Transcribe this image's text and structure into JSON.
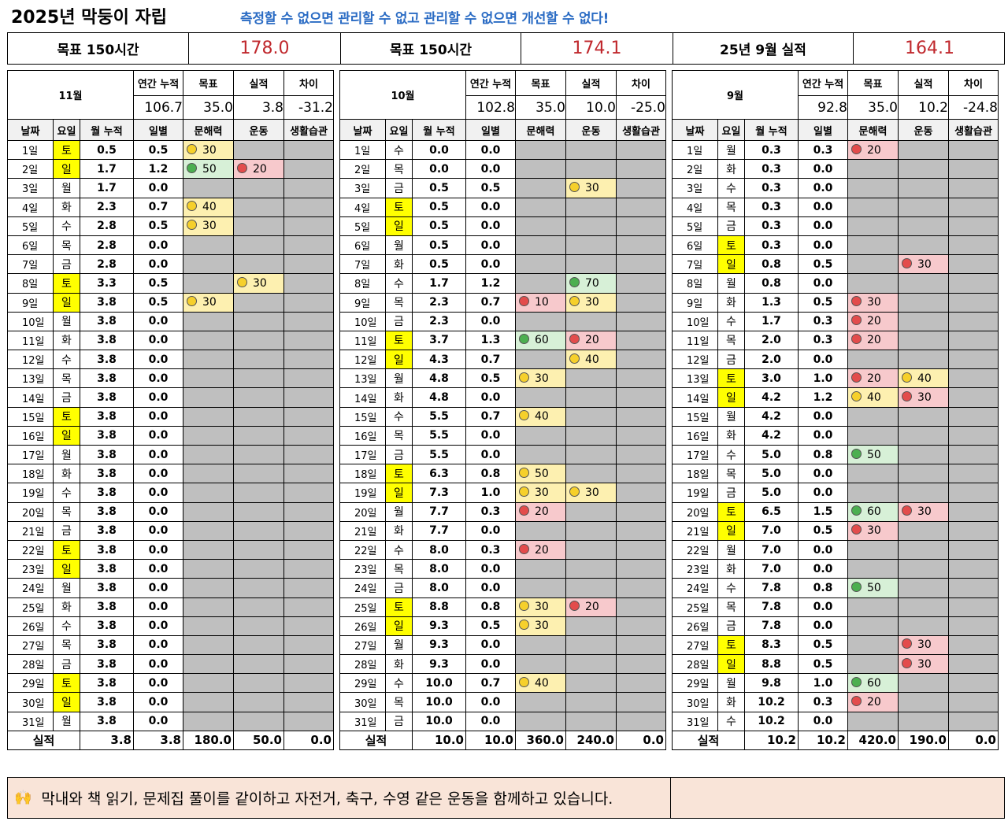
{
  "title": "2025년 막둥이 자립",
  "subtitle": "측정할 수 없으면 관리할 수 없고 관리할 수 없으면 개선할 수 없다!",
  "summary": [
    {
      "label": "목표 150시간",
      "value": "178.0"
    },
    {
      "label": "목표 150시간",
      "value": "174.1"
    },
    {
      "label": "25년 9월 실적",
      "value": "164.1"
    }
  ],
  "headers": {
    "annual": "연간 누적",
    "goal": "목표",
    "actual": "실적",
    "diff": "차이",
    "columns": [
      "날짜",
      "요일",
      "월 누적",
      "일별",
      "문해력",
      "운동",
      "생활습관"
    ],
    "total_label": "실적"
  },
  "months": [
    {
      "name": "11월",
      "annual": "106.7",
      "goal": "35.0",
      "actual": "3.8",
      "diff": "-31.2",
      "days": [
        [
          "1일",
          "토",
          "0.5",
          "0.5",
          "y30",
          ""
        ],
        [
          "2일",
          "일",
          "1.7",
          "1.2",
          "g50",
          "r20"
        ],
        [
          "3일",
          "월",
          "1.7",
          "0.0",
          "",
          ""
        ],
        [
          "4일",
          "화",
          "2.3",
          "0.7",
          "y40",
          ""
        ],
        [
          "5일",
          "수",
          "2.8",
          "0.5",
          "y30",
          ""
        ],
        [
          "6일",
          "목",
          "2.8",
          "0.0",
          "",
          ""
        ],
        [
          "7일",
          "금",
          "2.8",
          "0.0",
          "",
          ""
        ],
        [
          "8일",
          "토",
          "3.3",
          "0.5",
          "",
          "y30"
        ],
        [
          "9일",
          "일",
          "3.8",
          "0.5",
          "y30",
          ""
        ],
        [
          "10일",
          "월",
          "3.8",
          "0.0",
          "",
          ""
        ],
        [
          "11일",
          "화",
          "3.8",
          "0.0",
          "",
          ""
        ],
        [
          "12일",
          "수",
          "3.8",
          "0.0",
          "",
          ""
        ],
        [
          "13일",
          "목",
          "3.8",
          "0.0",
          "",
          ""
        ],
        [
          "14일",
          "금",
          "3.8",
          "0.0",
          "",
          ""
        ],
        [
          "15일",
          "토",
          "3.8",
          "0.0",
          "",
          ""
        ],
        [
          "16일",
          "일",
          "3.8",
          "0.0",
          "",
          ""
        ],
        [
          "17일",
          "월",
          "3.8",
          "0.0",
          "",
          ""
        ],
        [
          "18일",
          "화",
          "3.8",
          "0.0",
          "",
          ""
        ],
        [
          "19일",
          "수",
          "3.8",
          "0.0",
          "",
          ""
        ],
        [
          "20일",
          "목",
          "3.8",
          "0.0",
          "",
          ""
        ],
        [
          "21일",
          "금",
          "3.8",
          "0.0",
          "",
          ""
        ],
        [
          "22일",
          "토",
          "3.8",
          "0.0",
          "",
          ""
        ],
        [
          "23일",
          "일",
          "3.8",
          "0.0",
          "",
          ""
        ],
        [
          "24일",
          "월",
          "3.8",
          "0.0",
          "",
          ""
        ],
        [
          "25일",
          "화",
          "3.8",
          "0.0",
          "",
          ""
        ],
        [
          "26일",
          "수",
          "3.8",
          "0.0",
          "",
          ""
        ],
        [
          "27일",
          "목",
          "3.8",
          "0.0",
          "",
          ""
        ],
        [
          "28일",
          "금",
          "3.8",
          "0.0",
          "",
          ""
        ],
        [
          "29일",
          "토",
          "3.8",
          "0.0",
          "",
          ""
        ],
        [
          "30일",
          "일",
          "3.8",
          "0.0",
          "",
          ""
        ],
        [
          "31일",
          "월",
          "3.8",
          "0.0",
          "",
          ""
        ]
      ],
      "total": [
        "3.8",
        "3.8",
        "180.0",
        "50.0",
        "0.0"
      ]
    },
    {
      "name": "10월",
      "annual": "102.8",
      "goal": "35.0",
      "actual": "10.0",
      "diff": "-25.0",
      "days": [
        [
          "1일",
          "수",
          "0.0",
          "0.0",
          "",
          ""
        ],
        [
          "2일",
          "목",
          "0.0",
          "0.0",
          "",
          ""
        ],
        [
          "3일",
          "금",
          "0.5",
          "0.5",
          "",
          "y30"
        ],
        [
          "4일",
          "토",
          "0.5",
          "0.0",
          "",
          ""
        ],
        [
          "5일",
          "일",
          "0.5",
          "0.0",
          "",
          ""
        ],
        [
          "6일",
          "월",
          "0.5",
          "0.0",
          "",
          ""
        ],
        [
          "7일",
          "화",
          "0.5",
          "0.0",
          "",
          ""
        ],
        [
          "8일",
          "수",
          "1.7",
          "1.2",
          "",
          "g70"
        ],
        [
          "9일",
          "목",
          "2.3",
          "0.7",
          "r10",
          "y30"
        ],
        [
          "10일",
          "금",
          "2.3",
          "0.0",
          "",
          ""
        ],
        [
          "11일",
          "토",
          "3.7",
          "1.3",
          "g60",
          "r20"
        ],
        [
          "12일",
          "일",
          "4.3",
          "0.7",
          "",
          "y40"
        ],
        [
          "13일",
          "월",
          "4.8",
          "0.5",
          "y30",
          ""
        ],
        [
          "14일",
          "화",
          "4.8",
          "0.0",
          "",
          ""
        ],
        [
          "15일",
          "수",
          "5.5",
          "0.7",
          "y40",
          ""
        ],
        [
          "16일",
          "목",
          "5.5",
          "0.0",
          "",
          ""
        ],
        [
          "17일",
          "금",
          "5.5",
          "0.0",
          "",
          ""
        ],
        [
          "18일",
          "토",
          "6.3",
          "0.8",
          "y50",
          ""
        ],
        [
          "19일",
          "일",
          "7.3",
          "1.0",
          "y30",
          "y30"
        ],
        [
          "20일",
          "월",
          "7.7",
          "0.3",
          "r20",
          ""
        ],
        [
          "21일",
          "화",
          "7.7",
          "0.0",
          "",
          ""
        ],
        [
          "22일",
          "수",
          "8.0",
          "0.3",
          "r20",
          ""
        ],
        [
          "23일",
          "목",
          "8.0",
          "0.0",
          "",
          ""
        ],
        [
          "24일",
          "금",
          "8.0",
          "0.0",
          "",
          ""
        ],
        [
          "25일",
          "토",
          "8.8",
          "0.8",
          "y30",
          "r20"
        ],
        [
          "26일",
          "일",
          "9.3",
          "0.5",
          "y30",
          ""
        ],
        [
          "27일",
          "월",
          "9.3",
          "0.0",
          "",
          ""
        ],
        [
          "28일",
          "화",
          "9.3",
          "0.0",
          "",
          ""
        ],
        [
          "29일",
          "수",
          "10.0",
          "0.7",
          "y40",
          ""
        ],
        [
          "30일",
          "목",
          "10.0",
          "0.0",
          "",
          ""
        ],
        [
          "31일",
          "금",
          "10.0",
          "0.0",
          "",
          ""
        ]
      ],
      "total": [
        "10.0",
        "10.0",
        "360.0",
        "240.0",
        "0.0"
      ]
    },
    {
      "name": "9월",
      "annual": "92.8",
      "goal": "35.0",
      "actual": "10.2",
      "diff": "-24.8",
      "days": [
        [
          "1일",
          "월",
          "0.3",
          "0.3",
          "r20",
          ""
        ],
        [
          "2일",
          "화",
          "0.3",
          "0.0",
          "",
          ""
        ],
        [
          "3일",
          "수",
          "0.3",
          "0.0",
          "",
          ""
        ],
        [
          "4일",
          "목",
          "0.3",
          "0.0",
          "",
          ""
        ],
        [
          "5일",
          "금",
          "0.3",
          "0.0",
          "",
          ""
        ],
        [
          "6일",
          "토",
          "0.3",
          "0.0",
          "",
          ""
        ],
        [
          "7일",
          "일",
          "0.8",
          "0.5",
          "",
          "r30"
        ],
        [
          "8일",
          "월",
          "0.8",
          "0.0",
          "",
          ""
        ],
        [
          "9일",
          "화",
          "1.3",
          "0.5",
          "r30",
          ""
        ],
        [
          "10일",
          "수",
          "1.7",
          "0.3",
          "r20",
          ""
        ],
        [
          "11일",
          "목",
          "2.0",
          "0.3",
          "r20",
          ""
        ],
        [
          "12일",
          "금",
          "2.0",
          "0.0",
          "",
          ""
        ],
        [
          "13일",
          "토",
          "3.0",
          "1.0",
          "r20",
          "y40"
        ],
        [
          "14일",
          "일",
          "4.2",
          "1.2",
          "y40",
          "r30"
        ],
        [
          "15일",
          "월",
          "4.2",
          "0.0",
          "",
          ""
        ],
        [
          "16일",
          "화",
          "4.2",
          "0.0",
          "",
          ""
        ],
        [
          "17일",
          "수",
          "5.0",
          "0.8",
          "g50",
          ""
        ],
        [
          "18일",
          "목",
          "5.0",
          "0.0",
          "",
          ""
        ],
        [
          "19일",
          "금",
          "5.0",
          "0.0",
          "",
          ""
        ],
        [
          "20일",
          "토",
          "6.5",
          "1.5",
          "g60",
          "r30"
        ],
        [
          "21일",
          "일",
          "7.0",
          "0.5",
          "r30",
          ""
        ],
        [
          "22일",
          "월",
          "7.0",
          "0.0",
          "",
          ""
        ],
        [
          "23일",
          "화",
          "7.0",
          "0.0",
          "",
          ""
        ],
        [
          "24일",
          "수",
          "7.8",
          "0.8",
          "g50",
          ""
        ],
        [
          "25일",
          "목",
          "7.8",
          "0.0",
          "",
          ""
        ],
        [
          "26일",
          "금",
          "7.8",
          "0.0",
          "",
          ""
        ],
        [
          "27일",
          "토",
          "8.3",
          "0.5",
          "",
          "r30"
        ],
        [
          "28일",
          "일",
          "8.8",
          "0.5",
          "",
          "r30"
        ],
        [
          "29일",
          "월",
          "9.8",
          "1.0",
          "g60",
          ""
        ],
        [
          "30일",
          "화",
          "10.2",
          "0.3",
          "r20",
          ""
        ],
        [
          "31일",
          "수",
          "10.2",
          "0.0",
          "",
          ""
        ]
      ],
      "total": [
        "10.2",
        "10.2",
        "420.0",
        "190.0",
        "0.0"
      ]
    }
  ],
  "note": {
    "icon": "hands-icon",
    "glyph": "🙌",
    "text": "막내와 책 읽기, 문제집 풀이를 같이하고 자전거, 축구, 수영 같은 운동을 함께하고 있습니다."
  },
  "colors": {
    "accent_blue": "#2b6cc4",
    "value_red": "#c0282d",
    "weekend_yellow": "#ffff00",
    "inactive_gray": "#bfbfbf",
    "good_green": "#d7f0d7",
    "mid_yellow": "#fdf0b0",
    "low_red": "#f7c9cc",
    "note_bg": "#f9e4d8"
  }
}
